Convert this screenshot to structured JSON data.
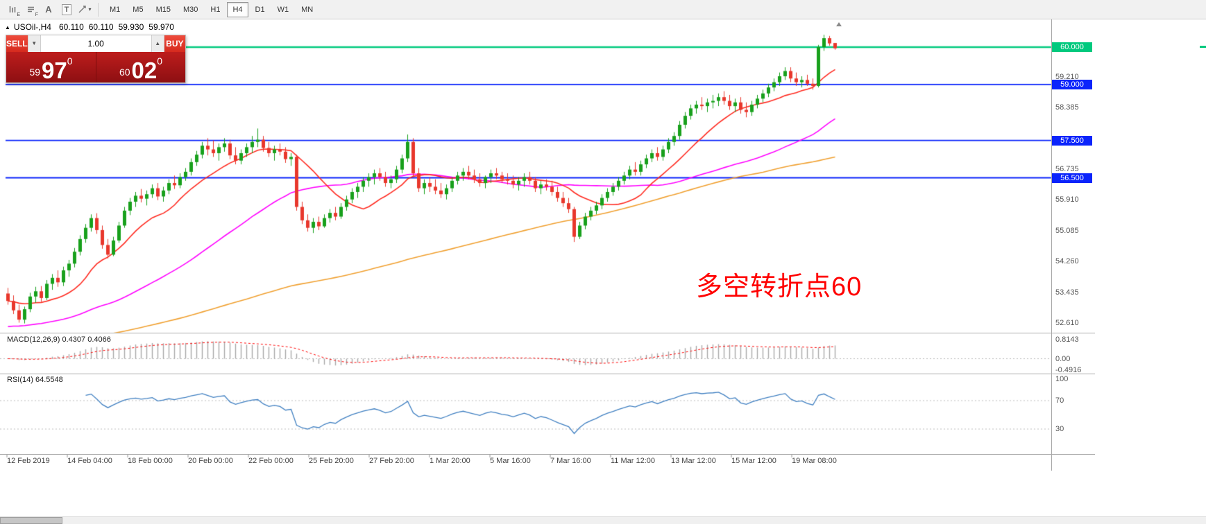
{
  "toolbar": {
    "icon_labels": {
      "e": "E",
      "f": "F",
      "a": "A",
      "t": "T",
      "caret": "▾"
    },
    "timeframes": [
      {
        "label": "M1",
        "active": false
      },
      {
        "label": "M5",
        "active": false
      },
      {
        "label": "M15",
        "active": false
      },
      {
        "label": "M30",
        "active": false
      },
      {
        "label": "H1",
        "active": false
      },
      {
        "label": "H4",
        "active": true
      },
      {
        "label": "D1",
        "active": false
      },
      {
        "label": "W1",
        "active": false
      },
      {
        "label": "MN",
        "active": false
      }
    ]
  },
  "quote_bar": {
    "direction_icon": "▲",
    "symbol": "USOil-,H4",
    "open": "60.110",
    "high": "60.110",
    "low": "59.930",
    "close": "59.970"
  },
  "trade_panel": {
    "sell_label": "SELL",
    "buy_label": "BUY",
    "volume": "1.00",
    "spinner_down": "▼",
    "spinner_up": "▲",
    "sell_price": {
      "prefix": "59",
      "big": "97",
      "sup": "0"
    },
    "buy_price": {
      "prefix": "60",
      "big": "02",
      "sup": "0"
    }
  },
  "annotation": {
    "text": "多空转折点60",
    "color": "#ff0000"
  },
  "price_scale": {
    "labels": [
      {
        "text": "59.210"
      },
      {
        "text": "58.385"
      },
      {
        "text": "56.735"
      },
      {
        "text": "55.910"
      },
      {
        "text": "55.085"
      },
      {
        "text": "54.260"
      },
      {
        "text": "53.435"
      },
      {
        "text": "52.610"
      }
    ],
    "badges": [
      {
        "text": "60.000",
        "color": "#00c97e"
      },
      {
        "text": "59.000",
        "color": "#0b24fb"
      },
      {
        "text": "57.500",
        "color": "#0b24fb"
      },
      {
        "text": "56.500",
        "color": "#0b24fb"
      }
    ]
  },
  "macd_panel": {
    "name": "MACD(12,26,9)",
    "value_main": "0.4307",
    "value_signal": "0.4066",
    "axis": [
      {
        "text": "0.8143"
      },
      {
        "text": "0.00"
      },
      {
        "text": "-0.4916"
      }
    ]
  },
  "rsi_panel": {
    "name": "RSI(14)",
    "value": "64.5548",
    "axis": [
      {
        "text": "100"
      },
      {
        "text": "70"
      },
      {
        "text": "30"
      }
    ]
  },
  "time_axis": [
    "12 Feb 2019",
    "14 Feb 04:00",
    "18 Feb 00:00",
    "20 Feb 00:00",
    "22 Feb 00:00",
    "25 Feb 20:00",
    "27 Feb 20:00",
    "1 Mar 20:00",
    "5 Mar 16:00",
    "7 Mar 16:00",
    "11 Mar 12:00",
    "13 Mar 12:00",
    "15 Mar 12:00",
    "19 Mar 08:00"
  ],
  "chart_data": {
    "type": "candlestick",
    "symbol": "USOil-",
    "timeframe": "H4",
    "up_color": "#18a01c",
    "down_color": "#e8372c",
    "hlines": [
      {
        "price": 60.0,
        "color": "#00c97e",
        "width": 2.5
      },
      {
        "price": 59.0,
        "color": "#0b24fb",
        "width": 1.8
      },
      {
        "price": 57.5,
        "color": "#0b24fb",
        "width": 1.8
      },
      {
        "price": 56.5,
        "color": "#0b24fb",
        "width": 1.8
      }
    ],
    "moving_averages": [
      {
        "period": 120,
        "seed": 52.0,
        "color": "#f0a030"
      },
      {
        "period": 45,
        "seed": 52.5,
        "color": "#ff00ff"
      },
      {
        "period": 13,
        "seed": 53.2,
        "color": "#ff2a20"
      }
    ],
    "indicators": {
      "macd": {
        "params": [
          12,
          26,
          9
        ],
        "histogram_color": "#a8a8a8",
        "signal_color": "#ff0000"
      },
      "rsi": {
        "params": [
          14
        ],
        "color": "#3f7fc1",
        "levels": [
          70,
          30
        ]
      }
    },
    "candles": [
      [
        53.4,
        53.55,
        53.1,
        53.2
      ],
      [
        53.2,
        53.35,
        52.85,
        52.95
      ],
      [
        52.95,
        53.1,
        52.62,
        52.7
      ],
      [
        52.7,
        53.05,
        52.6,
        52.98
      ],
      [
        52.98,
        53.42,
        52.9,
        53.32
      ],
      [
        53.32,
        53.58,
        53.15,
        53.46
      ],
      [
        53.46,
        53.6,
        53.18,
        53.28
      ],
      [
        53.28,
        53.76,
        53.22,
        53.66
      ],
      [
        53.66,
        53.92,
        53.5,
        53.82
      ],
      [
        53.82,
        54.02,
        53.58,
        53.7
      ],
      [
        53.7,
        54.12,
        53.6,
        54.02
      ],
      [
        54.02,
        54.3,
        53.85,
        54.2
      ],
      [
        54.2,
        54.62,
        54.1,
        54.52
      ],
      [
        54.52,
        54.96,
        54.42,
        54.86
      ],
      [
        54.86,
        55.26,
        54.76,
        55.16
      ],
      [
        55.16,
        55.52,
        55.06,
        55.42
      ],
      [
        55.42,
        55.55,
        55.0,
        55.1
      ],
      [
        55.1,
        55.22,
        54.6,
        54.7
      ],
      [
        54.7,
        54.86,
        54.34,
        54.44
      ],
      [
        54.44,
        54.92,
        54.4,
        54.82
      ],
      [
        54.82,
        55.32,
        54.76,
        55.22
      ],
      [
        55.22,
        55.72,
        55.16,
        55.62
      ],
      [
        55.62,
        55.96,
        55.5,
        55.86
      ],
      [
        55.86,
        56.12,
        55.72,
        56.02
      ],
      [
        56.02,
        56.2,
        55.84,
        55.94
      ],
      [
        55.94,
        56.16,
        55.76,
        56.06
      ],
      [
        56.06,
        56.32,
        55.96,
        56.22
      ],
      [
        56.22,
        56.36,
        55.9,
        56.0
      ],
      [
        56.0,
        56.26,
        55.86,
        56.16
      ],
      [
        56.16,
        56.46,
        56.06,
        56.36
      ],
      [
        56.36,
        56.56,
        56.2,
        56.3
      ],
      [
        56.3,
        56.62,
        56.22,
        56.52
      ],
      [
        56.52,
        56.76,
        56.42,
        56.66
      ],
      [
        56.66,
        57.02,
        56.56,
        56.92
      ],
      [
        56.92,
        57.22,
        56.82,
        57.12
      ],
      [
        57.12,
        57.46,
        57.02,
        57.36
      ],
      [
        57.36,
        57.56,
        57.1,
        57.26
      ],
      [
        57.26,
        57.5,
        57.06,
        57.16
      ],
      [
        57.16,
        57.42,
        56.96,
        57.32
      ],
      [
        57.32,
        57.56,
        57.2,
        57.42
      ],
      [
        57.42,
        57.52,
        57.0,
        57.1
      ],
      [
        57.1,
        57.32,
        56.86,
        56.96
      ],
      [
        56.96,
        57.26,
        56.86,
        57.16
      ],
      [
        57.16,
        57.42,
        57.06,
        57.32
      ],
      [
        57.32,
        57.62,
        57.16,
        57.46
      ],
      [
        57.46,
        57.82,
        57.32,
        57.52
      ],
      [
        57.52,
        57.62,
        57.2,
        57.3
      ],
      [
        57.3,
        57.46,
        57.06,
        57.16
      ],
      [
        57.16,
        57.36,
        56.96,
        57.26
      ],
      [
        57.26,
        57.42,
        57.1,
        57.2
      ],
      [
        57.2,
        57.32,
        56.9,
        57.0
      ],
      [
        57.0,
        57.16,
        56.82,
        57.06
      ],
      [
        57.06,
        57.12,
        55.62,
        55.72
      ],
      [
        55.72,
        55.86,
        55.26,
        55.36
      ],
      [
        55.36,
        55.52,
        55.06,
        55.16
      ],
      [
        55.16,
        55.42,
        55.02,
        55.32
      ],
      [
        55.32,
        55.46,
        55.1,
        55.2
      ],
      [
        55.2,
        55.52,
        55.16,
        55.42
      ],
      [
        55.42,
        55.66,
        55.3,
        55.56
      ],
      [
        55.56,
        55.72,
        55.36,
        55.46
      ],
      [
        55.46,
        55.82,
        55.4,
        55.72
      ],
      [
        55.72,
        56.02,
        55.62,
        55.92
      ],
      [
        55.92,
        56.22,
        55.82,
        56.12
      ],
      [
        56.12,
        56.36,
        55.96,
        56.26
      ],
      [
        56.26,
        56.52,
        56.12,
        56.42
      ],
      [
        56.42,
        56.62,
        56.26,
        56.52
      ],
      [
        56.52,
        56.72,
        56.32,
        56.62
      ],
      [
        56.62,
        56.76,
        56.42,
        56.52
      ],
      [
        56.52,
        56.66,
        56.26,
        56.36
      ],
      [
        56.36,
        56.56,
        56.22,
        56.46
      ],
      [
        56.46,
        56.82,
        56.36,
        56.72
      ],
      [
        56.72,
        57.12,
        56.62,
        57.02
      ],
      [
        57.02,
        57.66,
        56.92,
        57.46
      ],
      [
        57.46,
        57.56,
        56.52,
        56.62
      ],
      [
        56.62,
        56.76,
        56.12,
        56.22
      ],
      [
        56.22,
        56.46,
        56.06,
        56.36
      ],
      [
        56.36,
        56.52,
        56.12,
        56.26
      ],
      [
        56.26,
        56.46,
        56.06,
        56.16
      ],
      [
        56.16,
        56.36,
        55.96,
        56.06
      ],
      [
        56.06,
        56.32,
        55.92,
        56.22
      ],
      [
        56.22,
        56.52,
        56.12,
        56.42
      ],
      [
        56.42,
        56.66,
        56.32,
        56.56
      ],
      [
        56.56,
        56.76,
        56.42,
        56.66
      ],
      [
        56.66,
        56.82,
        56.46,
        56.56
      ],
      [
        56.56,
        56.72,
        56.36,
        56.46
      ],
      [
        56.46,
        56.62,
        56.26,
        56.36
      ],
      [
        56.36,
        56.56,
        56.22,
        56.52
      ],
      [
        56.52,
        56.72,
        56.36,
        56.62
      ],
      [
        56.62,
        56.76,
        56.46,
        56.56
      ],
      [
        56.56,
        56.66,
        56.36,
        56.46
      ],
      [
        56.46,
        56.62,
        56.32,
        56.42
      ],
      [
        56.42,
        56.56,
        56.22,
        56.32
      ],
      [
        56.32,
        56.52,
        56.16,
        56.42
      ],
      [
        56.42,
        56.62,
        56.26,
        56.52
      ],
      [
        56.52,
        56.66,
        56.32,
        56.42
      ],
      [
        56.42,
        56.52,
        56.12,
        56.22
      ],
      [
        56.22,
        56.42,
        56.06,
        56.32
      ],
      [
        56.32,
        56.46,
        56.16,
        56.26
      ],
      [
        56.26,
        56.42,
        56.02,
        56.12
      ],
      [
        56.12,
        56.26,
        55.86,
        55.96
      ],
      [
        55.96,
        56.12,
        55.72,
        55.82
      ],
      [
        55.82,
        55.96,
        55.56,
        55.66
      ],
      [
        55.66,
        55.72,
        54.78,
        54.92
      ],
      [
        54.92,
        55.32,
        54.86,
        55.22
      ],
      [
        55.22,
        55.56,
        55.12,
        55.46
      ],
      [
        55.46,
        55.72,
        55.36,
        55.62
      ],
      [
        55.62,
        55.86,
        55.52,
        55.76
      ],
      [
        55.76,
        56.06,
        55.66,
        55.96
      ],
      [
        55.96,
        56.22,
        55.86,
        56.12
      ],
      [
        56.12,
        56.36,
        56.02,
        56.26
      ],
      [
        56.26,
        56.52,
        56.16,
        56.42
      ],
      [
        56.42,
        56.66,
        56.32,
        56.56
      ],
      [
        56.56,
        56.82,
        56.46,
        56.72
      ],
      [
        56.72,
        56.92,
        56.56,
        56.66
      ],
      [
        56.66,
        56.96,
        56.56,
        56.86
      ],
      [
        56.86,
        57.12,
        56.76,
        57.02
      ],
      [
        57.02,
        57.26,
        56.92,
        57.16
      ],
      [
        57.16,
        57.32,
        56.96,
        57.06
      ],
      [
        57.06,
        57.36,
        56.96,
        57.26
      ],
      [
        57.26,
        57.56,
        57.16,
        57.46
      ],
      [
        57.46,
        57.72,
        57.36,
        57.62
      ],
      [
        57.62,
        58.02,
        57.52,
        57.92
      ],
      [
        57.92,
        58.26,
        57.82,
        58.16
      ],
      [
        58.16,
        58.46,
        58.06,
        58.36
      ],
      [
        58.36,
        58.56,
        58.22,
        58.46
      ],
      [
        58.46,
        58.66,
        58.32,
        58.42
      ],
      [
        58.42,
        58.62,
        58.26,
        58.52
      ],
      [
        58.52,
        58.72,
        58.36,
        58.56
      ],
      [
        58.56,
        58.76,
        58.42,
        58.66
      ],
      [
        58.66,
        58.82,
        58.46,
        58.56
      ],
      [
        58.56,
        58.72,
        58.32,
        58.42
      ],
      [
        58.42,
        58.62,
        58.26,
        58.52
      ],
      [
        58.52,
        58.66,
        58.22,
        58.32
      ],
      [
        58.32,
        58.52,
        58.12,
        58.26
      ],
      [
        58.26,
        58.56,
        58.16,
        58.46
      ],
      [
        58.46,
        58.72,
        58.36,
        58.62
      ],
      [
        58.62,
        58.86,
        58.52,
        58.76
      ],
      [
        58.76,
        59.02,
        58.66,
        58.92
      ],
      [
        58.92,
        59.16,
        58.82,
        59.06
      ],
      [
        59.06,
        59.32,
        58.96,
        59.22
      ],
      [
        59.22,
        59.46,
        59.12,
        59.36
      ],
      [
        59.36,
        59.46,
        59.06,
        59.16
      ],
      [
        59.16,
        59.32,
        58.96,
        59.06
      ],
      [
        59.06,
        59.22,
        58.92,
        59.12
      ],
      [
        59.12,
        59.26,
        58.96,
        59.02
      ],
      [
        59.02,
        59.16,
        58.86,
        58.96
      ],
      [
        58.96,
        60.06,
        58.92,
        60.0
      ],
      [
        60.0,
        60.33,
        59.9,
        60.24
      ],
      [
        60.24,
        60.3,
        60.04,
        60.1
      ],
      [
        60.11,
        60.11,
        59.93,
        59.97
      ]
    ]
  }
}
